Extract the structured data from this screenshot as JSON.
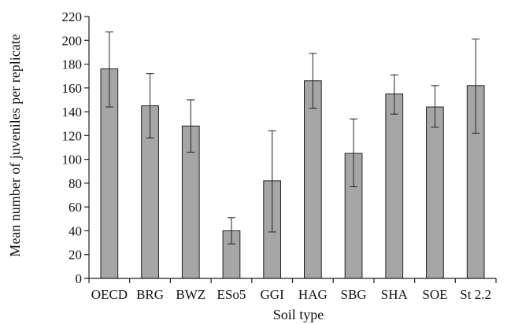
{
  "chart_data": {
    "type": "bar",
    "title": "",
    "xlabel": "Soil type",
    "ylabel": "Mean number of juveniles per replicate",
    "ylim": [
      0,
      220
    ],
    "yticks": [
      0,
      20,
      40,
      60,
      80,
      100,
      120,
      140,
      160,
      180,
      200,
      220
    ],
    "grid": false,
    "legend": "none",
    "bar_color": "#a6a6a6",
    "categories": [
      "OECD",
      "BRG",
      "BWZ",
      "ESo5",
      "GGI",
      "HAG",
      "SBG",
      "SHA",
      "SOE",
      "St 2.2"
    ],
    "values": [
      176,
      145,
      128,
      40,
      82,
      166,
      105,
      155,
      144,
      162
    ],
    "error_upper": [
      207,
      172,
      150,
      51,
      124,
      189,
      134,
      171,
      162,
      201
    ],
    "error_lower": [
      144,
      118,
      106,
      29,
      39,
      143,
      77,
      138,
      127,
      122
    ]
  }
}
